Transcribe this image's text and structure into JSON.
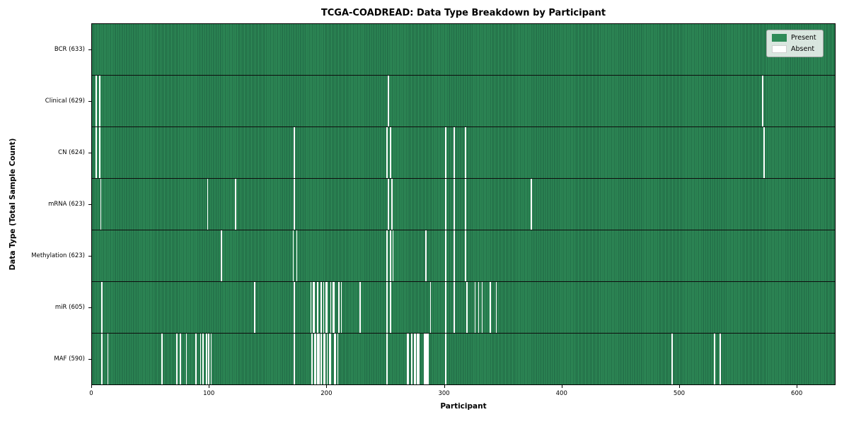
{
  "title": "TCGA-COADREAD: Data Type Breakdown by Participant",
  "x_axis_label": "Participant",
  "y_axis_label": "Data Type (Total Sample Count)",
  "legend": {
    "items": [
      {
        "label": "Present",
        "color": "#2e8b57"
      },
      {
        "label": "Absent",
        "color": "#ffffff"
      }
    ]
  },
  "chart_data": {
    "type": "heatmap",
    "title": "TCGA-COADREAD: Data Type Breakdown by Participant",
    "xlabel": "Participant",
    "ylabel": "Data Type (Total Sample Count)",
    "x_ticks": [
      0,
      100,
      200,
      300,
      400,
      500,
      600
    ],
    "xlim": [
      0,
      633
    ],
    "n_participants": 633,
    "legend_position": "upper right",
    "colors": {
      "present": "#2e8b57",
      "absent": "#ffffff",
      "cell_edge": "#1e6342"
    },
    "grid": false,
    "rows": [
      {
        "label": "BCR (633)",
        "data_type": "BCR",
        "present_count": 633,
        "absent_participants": []
      },
      {
        "label": "Clinical (629)",
        "data_type": "Clinical",
        "present_count": 629,
        "absent_participants": [
          3,
          6,
          252,
          571
        ]
      },
      {
        "label": "CN (624)",
        "data_type": "CN",
        "present_count": 624,
        "absent_participants": [
          3,
          6,
          172,
          251,
          254,
          301,
          308,
          318,
          572
        ]
      },
      {
        "label": "mRNA (623)",
        "data_type": "mRNA",
        "present_count": 623,
        "absent_participants": [
          7,
          98,
          122,
          172,
          252,
          255,
          301,
          308,
          318,
          374
        ]
      },
      {
        "label": "Methylation (623)",
        "data_type": "Methylation",
        "present_count": 623,
        "absent_participants": [
          110,
          171,
          174,
          251,
          254,
          256,
          284,
          301,
          308,
          318
        ]
      },
      {
        "label": "miR (605)",
        "data_type": "miR",
        "present_count": 605,
        "absent_participants": [
          8,
          138,
          172,
          186,
          188,
          189,
          192,
          195,
          197,
          199,
          200,
          203,
          205,
          206,
          210,
          212,
          228,
          251,
          254,
          288,
          301,
          308,
          319,
          326,
          329,
          332,
          339,
          344
        ]
      },
      {
        "label": "MAF (590)",
        "data_type": "MAF",
        "present_count": 590,
        "absent_participants": [
          8,
          13,
          59,
          72,
          75,
          80,
          88,
          92,
          94,
          97,
          99,
          101,
          172,
          187,
          189,
          190,
          192,
          193,
          195,
          197,
          198,
          200,
          202,
          203,
          206,
          207,
          209,
          251,
          268,
          269,
          272,
          274,
          275,
          277,
          278,
          283,
          284,
          285,
          286,
          301,
          494,
          530,
          535
        ]
      }
    ]
  }
}
